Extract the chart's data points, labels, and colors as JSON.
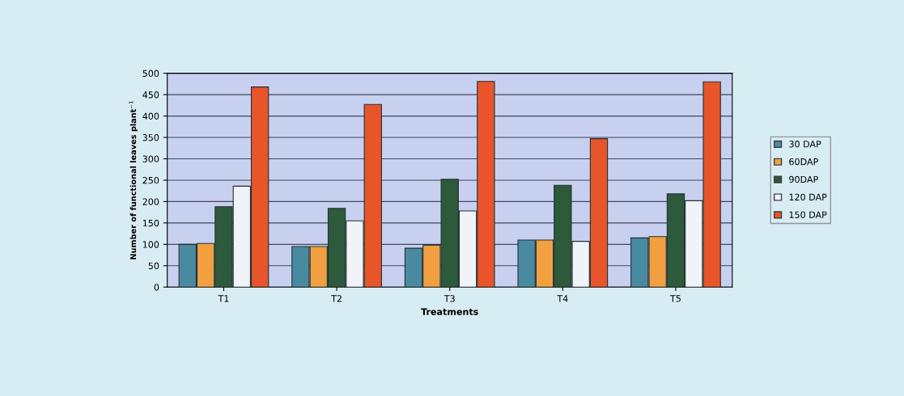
{
  "chart_data": {
    "type": "bar",
    "xlabel": "Treatments",
    "ylabel": "Number of functional leaves plant$^{−1}$",
    "categories": [
      "T1",
      "T2",
      "T3",
      "T4",
      "T5"
    ],
    "series": [
      {
        "name": "30 DAP",
        "color": "#4a8aa0",
        "values": [
          100,
          95,
          91,
          110,
          115
        ]
      },
      {
        "name": "60DAP",
        "color": "#f0a040",
        "values": [
          102,
          95,
          98,
          110,
          118
        ]
      },
      {
        "name": "90DAP",
        "color": "#2d5a3a",
        "values": [
          188,
          184,
          252,
          238,
          218
        ]
      },
      {
        "name": "120 DAP",
        "color": "#f0f4f8",
        "values": [
          236,
          155,
          178,
          107,
          202
        ]
      },
      {
        "name": "150 DAP",
        "color": "#e8552a",
        "values": [
          468,
          427,
          481,
          347,
          480
        ]
      }
    ],
    "ylim": [
      0,
      500
    ],
    "yticks": [
      0,
      50,
      100,
      150,
      200,
      250,
      300,
      350,
      400,
      450,
      500
    ],
    "grid": "y",
    "legend": "right"
  }
}
